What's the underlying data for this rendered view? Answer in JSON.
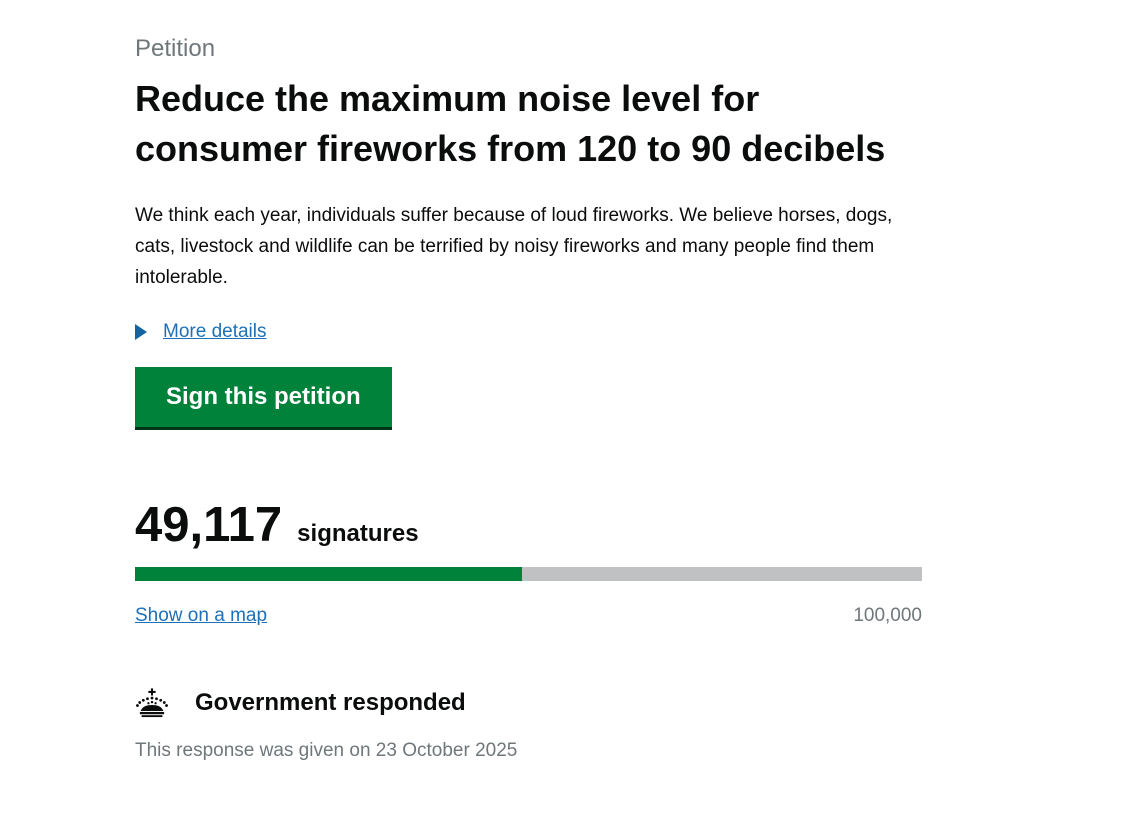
{
  "petition": {
    "kicker": "Petition",
    "title": "Reduce the maximum noise level for consumer fireworks from 120 to 90 decibels",
    "summary": "We think each year, individuals suffer because of loud fireworks. We believe horses, dogs, cats, livestock and wildlife can be terrified by noisy fireworks and many people find them intolerable.",
    "more_details_label": "More details",
    "sign_button_label": "Sign this petition"
  },
  "signatures": {
    "count": "49,117",
    "label": "signatures",
    "goal": "100,000",
    "progress_percent": 49.117,
    "map_link_label": "Show on a map"
  },
  "government_response": {
    "heading": "Government responded",
    "date_line": "This response was given on 23 October 2025"
  },
  "colors": {
    "text_black": "#0b0c0c",
    "text_gray": "#6f777b",
    "link_blue": "#1d70b8",
    "button_green": "#00823b",
    "button_shadow_green": "#003618",
    "progress_green": "#00823b",
    "progress_track_gray": "#bfc1c3"
  }
}
